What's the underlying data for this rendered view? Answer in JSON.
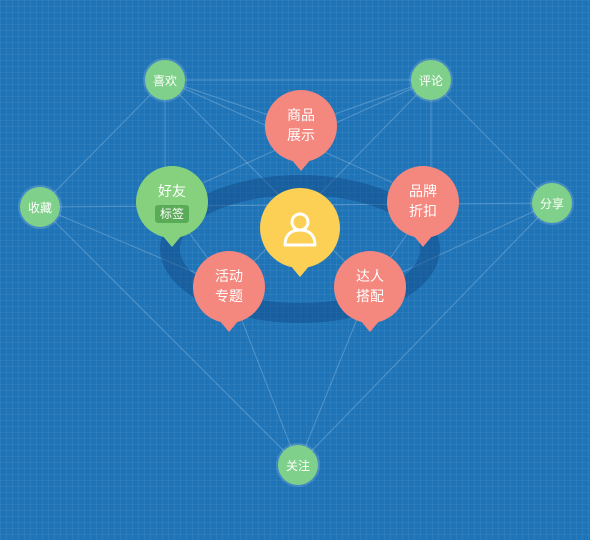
{
  "colors": {
    "background": "#1f74b8",
    "outer_node": "#7fd08a",
    "pin_red": "#f4877e",
    "pin_green": "#86d17d",
    "pin_yellow": "#fccf55"
  },
  "outer_nodes": {
    "like": "喜欢",
    "comment": "评论",
    "favorite": "收藏",
    "share": "分享",
    "follow": "关注"
  },
  "pins": {
    "products": [
      "商品",
      "展示"
    ],
    "friends": {
      "title": "好友",
      "tag": "标签"
    },
    "brands": [
      "品牌",
      "折扣"
    ],
    "activities": [
      "活动",
      "专题"
    ],
    "experts": [
      "达人",
      "搭配"
    ]
  },
  "center": {
    "icon": "user-icon"
  }
}
